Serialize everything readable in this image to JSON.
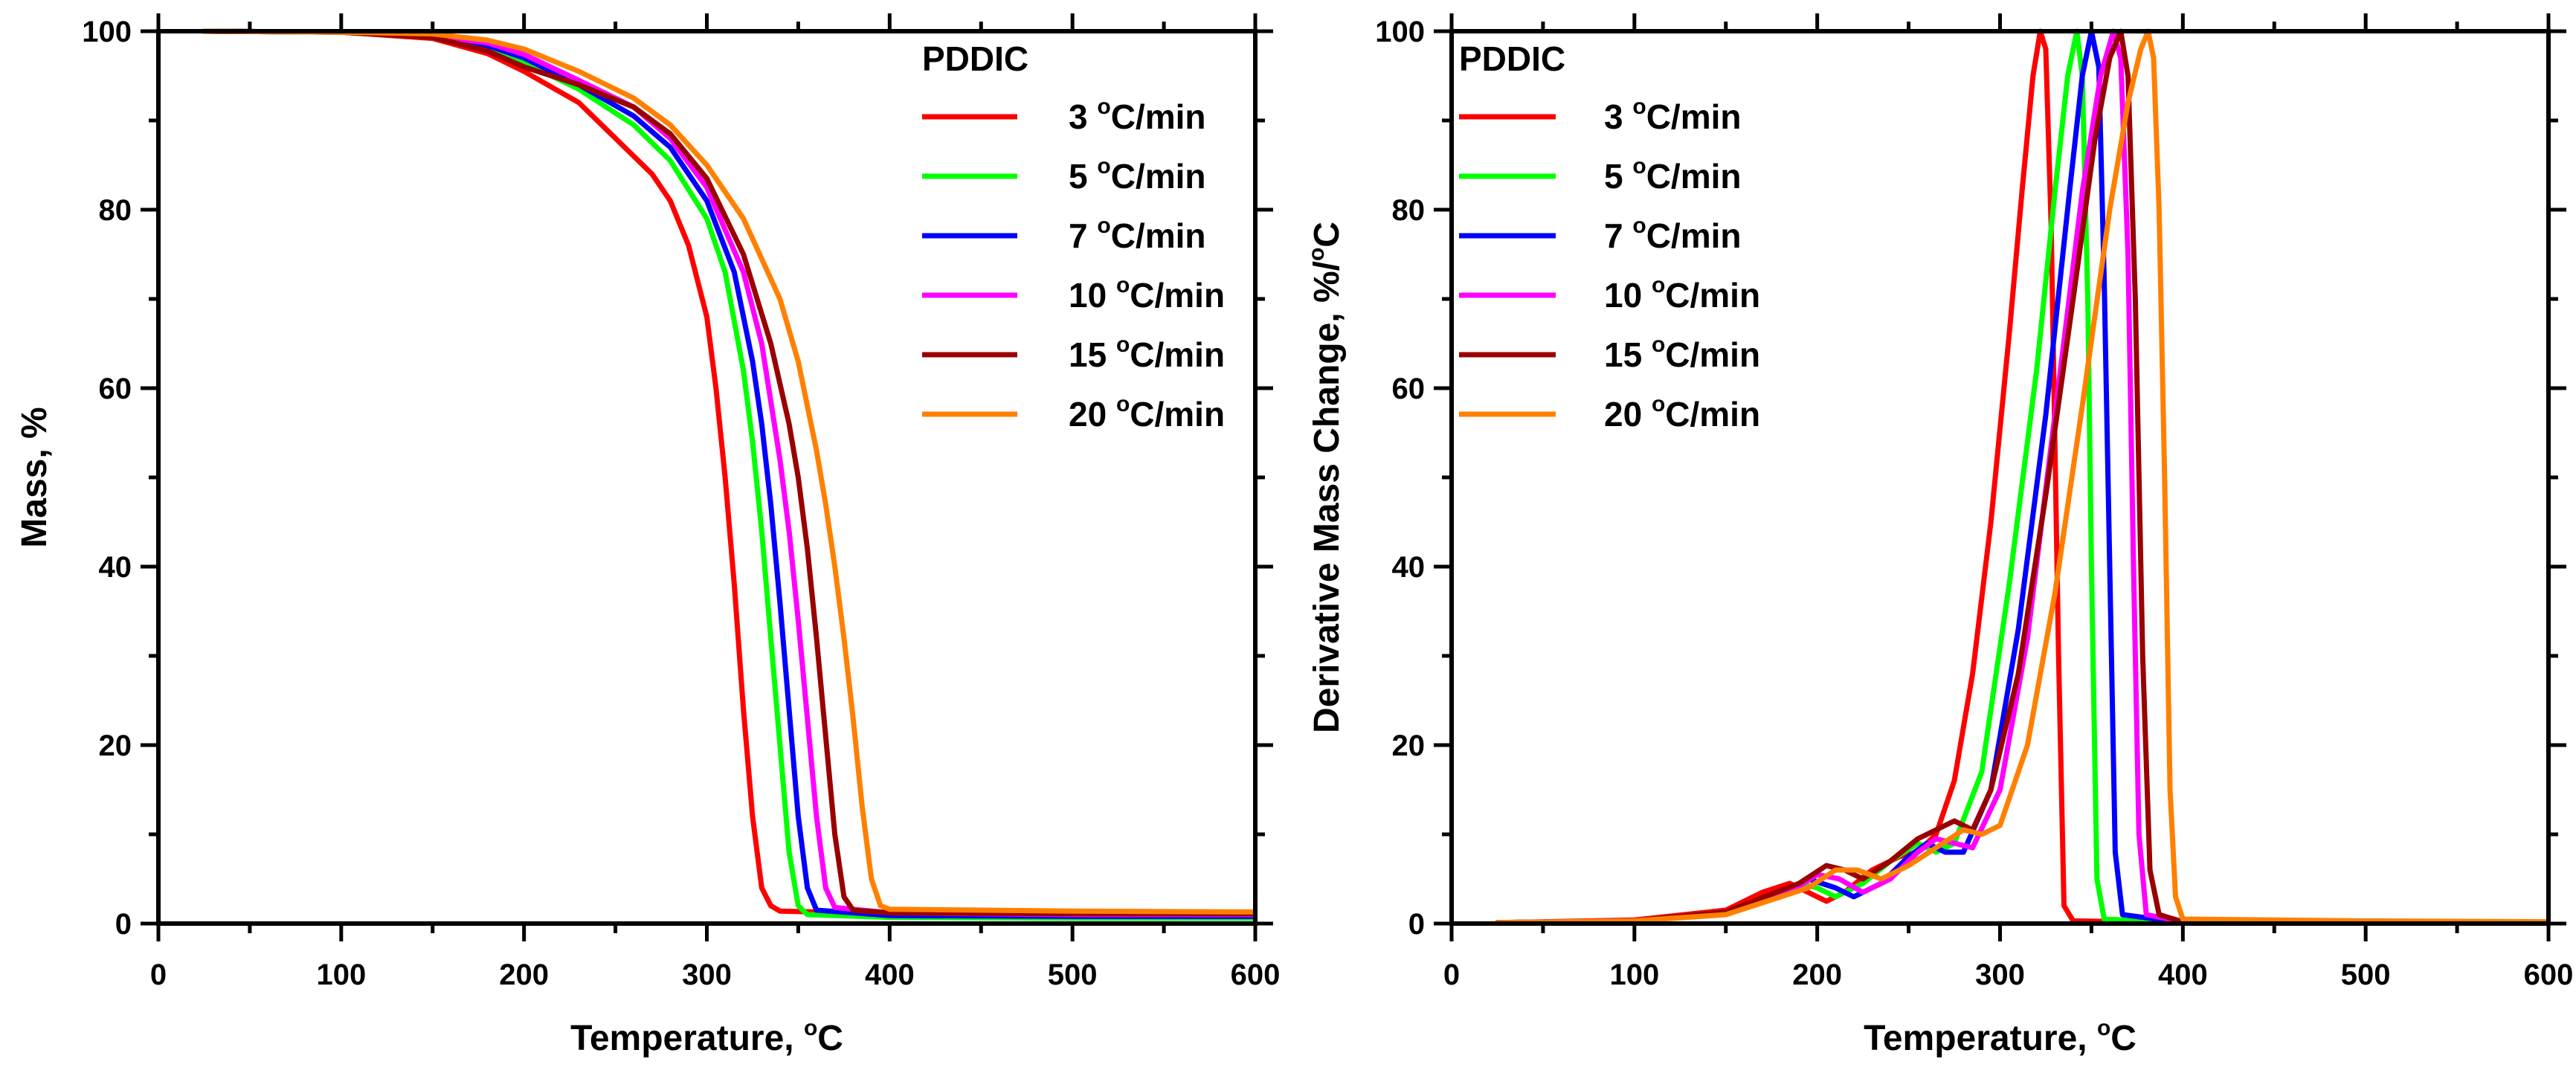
{
  "chart_data": [
    {
      "type": "line",
      "title": "",
      "xlabel": "Temperature, °C",
      "xlabel_main": "Temperature, ",
      "xlabel_sup": "o",
      "xlabel_unit": "C",
      "ylabel": "Mass, %",
      "xlim": [
        0,
        600
      ],
      "ylim": [
        0,
        100
      ],
      "xticks": [
        0,
        100,
        200,
        300,
        400,
        500,
        600
      ],
      "yticks": [
        0,
        20,
        40,
        60,
        80,
        100
      ],
      "legend_title": "PDDIC",
      "legend_position": "top-right",
      "series": [
        {
          "name": "3 °C/min",
          "label_num": "3 ",
          "label_sup": "o",
          "label_unit": "C/min",
          "color": "#ff0000",
          "x": [
            25,
            100,
            150,
            180,
            200,
            230,
            250,
            270,
            280,
            290,
            300,
            305,
            310,
            315,
            320,
            325,
            330,
            335,
            340,
            400,
            500,
            600
          ],
          "y": [
            100,
            99.9,
            99.2,
            97.5,
            95.5,
            92,
            88,
            84,
            81,
            76,
            68,
            60,
            50,
            38,
            24,
            12,
            4,
            2,
            1.4,
            1.1,
            1.0,
            1.0
          ]
        },
        {
          "name": "5 °C/min",
          "label_num": "5 ",
          "label_sup": "o",
          "label_unit": "C/min",
          "color": "#00ff00",
          "x": [
            25,
            100,
            150,
            180,
            200,
            230,
            260,
            280,
            300,
            310,
            320,
            325,
            330,
            335,
            340,
            345,
            350,
            355,
            400,
            500,
            600
          ],
          "y": [
            100,
            99.9,
            99.3,
            98,
            96.5,
            93.5,
            89.5,
            85.5,
            79,
            73,
            62,
            54,
            44,
            32,
            20,
            8,
            2,
            1,
            0.7,
            0.6,
            0.6
          ]
        },
        {
          "name": "7 °C/min",
          "label_num": "7 ",
          "label_sup": "o",
          "label_unit": "C/min",
          "color": "#0000ff",
          "x": [
            25,
            100,
            150,
            180,
            200,
            230,
            260,
            280,
            300,
            315,
            325,
            330,
            335,
            340,
            345,
            350,
            355,
            360,
            400,
            500,
            600
          ],
          "y": [
            100,
            99.9,
            99.4,
            98.4,
            97,
            94,
            90.5,
            87,
            81,
            73,
            63,
            56,
            47,
            36,
            24,
            12,
            4,
            1.5,
            0.9,
            0.8,
            0.8
          ]
        },
        {
          "name": "10 °C/min",
          "label_num": "10 ",
          "label_sup": "o",
          "label_unit": "C/min",
          "color": "#ff00ff",
          "x": [
            25,
            100,
            150,
            180,
            200,
            230,
            260,
            280,
            300,
            320,
            330,
            340,
            345,
            350,
            355,
            360,
            365,
            370,
            400,
            500,
            600
          ],
          "y": [
            100,
            99.9,
            99.5,
            98.7,
            97.4,
            94.5,
            91.5,
            88,
            82.5,
            73,
            65,
            52,
            44,
            34,
            23,
            12,
            4,
            1.8,
            1.2,
            1.0,
            1.0
          ]
        },
        {
          "name": "15 °C/min",
          "label_num": "15 ",
          "label_sup": "o",
          "label_unit": "C/min",
          "color": "#990000",
          "x": [
            25,
            100,
            150,
            180,
            200,
            230,
            260,
            280,
            300,
            320,
            335,
            345,
            350,
            355,
            360,
            365,
            370,
            375,
            380,
            400,
            500,
            600
          ],
          "y": [
            100,
            99.9,
            99.3,
            97.8,
            96,
            94,
            91.5,
            88.5,
            83.5,
            75,
            65,
            56,
            50,
            42,
            32,
            21,
            10,
            3,
            1.5,
            1.2,
            1.1,
            1.1
          ]
        },
        {
          "name": "20 °C/min",
          "label_num": "20 ",
          "label_sup": "o",
          "label_unit": "C/min",
          "color": "#ff8000",
          "x": [
            25,
            100,
            150,
            180,
            200,
            230,
            260,
            280,
            300,
            320,
            340,
            350,
            360,
            365,
            370,
            375,
            380,
            385,
            390,
            395,
            400,
            500,
            600
          ],
          "y": [
            100,
            99.9,
            99.7,
            99,
            98,
            95.5,
            92.5,
            89.5,
            85,
            79,
            70,
            63,
            53,
            47,
            40,
            32,
            23,
            13,
            5,
            2,
            1.6,
            1.4,
            1.3
          ]
        }
      ]
    },
    {
      "type": "line",
      "title": "",
      "xlabel": "Temperature, °C",
      "xlabel_main": "Temperature, ",
      "xlabel_sup": "o",
      "xlabel_unit": "C",
      "ylabel": "Derivative Mass Change, %/°C",
      "ylabel_main": "Derivative Mass Change, %/",
      "ylabel_sup": "o",
      "ylabel_unit": "C",
      "xlim": [
        0,
        600
      ],
      "ylim": [
        0,
        100
      ],
      "xticks": [
        0,
        100,
        200,
        300,
        400,
        500,
        600
      ],
      "yticks": [
        0,
        20,
        40,
        60,
        80,
        100
      ],
      "legend_title": "PDDIC",
      "legend_position": "top-left",
      "series": [
        {
          "name": "3 °C/min",
          "label_num": "3 ",
          "label_sup": "o",
          "label_unit": "C/min",
          "color": "#ff0000",
          "x": [
            25,
            100,
            150,
            170,
            185,
            195,
            205,
            215,
            230,
            245,
            255,
            265,
            275,
            285,
            295,
            305,
            312,
            318,
            322,
            325,
            328,
            332,
            335,
            340,
            400,
            500,
            600
          ],
          "y": [
            0.1,
            0.4,
            1.5,
            3.5,
            4.5,
            3.5,
            2.5,
            3.5,
            6,
            7.5,
            8,
            10,
            16,
            28,
            45,
            66,
            82,
            95,
            100,
            98,
            78,
            30,
            2,
            0.3,
            0.1,
            0.2,
            0.1
          ]
        },
        {
          "name": "5 °C/min",
          "label_num": "5 ",
          "label_sup": "o",
          "label_unit": "C/min",
          "color": "#00ff00",
          "x": [
            25,
            100,
            150,
            175,
            190,
            200,
            210,
            225,
            240,
            255,
            265,
            275,
            290,
            305,
            320,
            330,
            337,
            342,
            345,
            348,
            350,
            353,
            357,
            400,
            500,
            600
          ],
          "y": [
            0.1,
            0.3,
            1.3,
            3,
            4.5,
            4,
            3,
            4.5,
            7,
            9,
            8,
            9,
            17,
            38,
            62,
            82,
            95,
            100,
            95,
            70,
            40,
            5,
            0.5,
            0.1,
            0.2,
            0.1
          ]
        },
        {
          "name": "7 °C/min",
          "label_num": "7 ",
          "label_sup": "o",
          "label_unit": "C/min",
          "color": "#0000ff",
          "x": [
            25,
            100,
            150,
            180,
            195,
            210,
            220,
            235,
            250,
            260,
            270,
            280,
            295,
            310,
            325,
            338,
            345,
            350,
            354,
            357,
            360,
            363,
            367,
            400,
            500,
            600
          ],
          "y": [
            0.1,
            0.3,
            1.2,
            3,
            5,
            4,
            3,
            4.5,
            7.5,
            9,
            8,
            8,
            15,
            33,
            57,
            82,
            95,
            100,
            96,
            72,
            40,
            8,
            1,
            0.1,
            0.2,
            0.1
          ]
        },
        {
          "name": "10 °C/min",
          "label_num": "10 ",
          "label_sup": "o",
          "label_unit": "C/min",
          "color": "#ff00ff",
          "x": [
            25,
            100,
            150,
            185,
            200,
            212,
            225,
            240,
            255,
            265,
            275,
            285,
            300,
            315,
            330,
            345,
            355,
            362,
            366,
            370,
            373,
            376,
            380,
            400,
            500,
            600
          ],
          "y": [
            0.1,
            0.3,
            1.2,
            3.5,
            5.5,
            5,
            3.5,
            5,
            8,
            9.5,
            9,
            8.5,
            15,
            32,
            57,
            82,
            95,
            100,
            97,
            75,
            40,
            10,
            1,
            0.2,
            0.2,
            0.1
          ]
        },
        {
          "name": "15 °C/min",
          "label_num": "15 ",
          "label_sup": "o",
          "label_unit": "C/min",
          "color": "#990000",
          "x": [
            25,
            100,
            150,
            190,
            205,
            215,
            225,
            240,
            255,
            265,
            275,
            285,
            295,
            310,
            325,
            340,
            352,
            360,
            366,
            370,
            374,
            378,
            382,
            387,
            400,
            500,
            600
          ],
          "y": [
            0.1,
            0.3,
            1.3,
            4.5,
            6.5,
            6,
            5,
            7,
            9.5,
            10.5,
            11.5,
            10.5,
            15,
            28,
            48,
            70,
            88,
            97,
            100,
            95,
            70,
            30,
            6,
            1,
            0.2,
            0.2,
            0.1
          ]
        },
        {
          "name": "20 °C/min",
          "label_num": "20 ",
          "label_sup": "o",
          "label_unit": "C/min",
          "color": "#ff8000",
          "x": [
            25,
            100,
            150,
            195,
            210,
            222,
            235,
            250,
            265,
            280,
            290,
            300,
            315,
            330,
            345,
            360,
            370,
            377,
            381,
            384,
            387,
            390,
            393,
            396,
            400,
            500,
            600
          ],
          "y": [
            0.1,
            0.3,
            1,
            4,
            6,
            6,
            5,
            6.5,
            8.5,
            10.5,
            10,
            11,
            20,
            37,
            58,
            80,
            92,
            98,
            100,
            97,
            80,
            50,
            15,
            3,
            0.5,
            0.3,
            0.2
          ]
        }
      ]
    }
  ]
}
